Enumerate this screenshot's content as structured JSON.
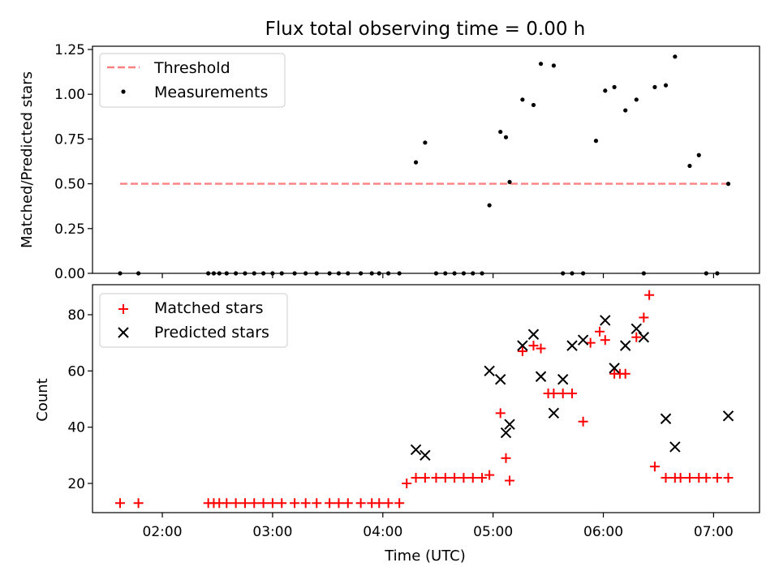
{
  "title": "Flux total observing time = 0.00 h",
  "chart_data": [
    {
      "type": "scatter",
      "ylabel": "Matched/Predicted stars",
      "xlim": [
        "01:22",
        "07:25"
      ],
      "ylim": [
        0,
        1.25
      ],
      "yticks": [
        "0.00",
        "0.25",
        "0.50",
        "0.75",
        "1.00",
        "1.25"
      ],
      "legend_position": "top-left",
      "threshold": {
        "name": "Threshold",
        "color": "#ff8080",
        "y": 0.5,
        "x_start": "01:37",
        "x_end": "07:09"
      },
      "series": [
        {
          "name": "Measurements",
          "color": "#000000",
          "x": [
            "01:37",
            "01:47",
            "02:25",
            "02:28",
            "02:31",
            "02:35",
            "02:40",
            "02:45",
            "02:50",
            "02:55",
            "03:00",
            "03:05",
            "03:12",
            "03:18",
            "03:24",
            "03:31",
            "03:36",
            "03:41",
            "03:48",
            "03:54",
            "03:58",
            "04:03",
            "04:09",
            "04:18",
            "04:23",
            "04:29",
            "04:34",
            "04:39",
            "04:44",
            "04:49",
            "04:54",
            "04:58",
            "05:04",
            "05:07",
            "05:09",
            "05:16",
            "05:22",
            "05:26",
            "05:33",
            "05:38",
            "05:43",
            "05:49",
            "05:56",
            "06:01",
            "06:06",
            "06:12",
            "06:18",
            "06:22",
            "06:28",
            "06:34",
            "06:39",
            "06:47",
            "06:52",
            "06:56",
            "07:02",
            "07:08"
          ],
          "y": [
            0,
            0,
            0,
            0,
            0,
            0,
            0,
            0,
            0,
            0,
            0,
            0,
            0,
            0,
            0,
            0,
            0,
            0,
            0,
            0,
            0,
            0,
            0,
            0.62,
            0.73,
            0,
            0,
            0,
            0,
            0,
            0,
            0.38,
            0.79,
            0.76,
            0.51,
            0.97,
            0.94,
            1.17,
            1.16,
            0,
            0,
            0,
            0.74,
            1.02,
            1.04,
            0.91,
            0.97,
            0,
            1.04,
            1.05,
            1.21,
            0.6,
            0.66,
            0,
            0,
            0.5
          ]
        }
      ]
    },
    {
      "type": "scatter",
      "xlabel": "Time (UTC)",
      "ylabel": "Count",
      "xlim": [
        "01:22",
        "07:25"
      ],
      "ylim": [
        10,
        90
      ],
      "xticks": [
        "02:00",
        "03:00",
        "04:00",
        "05:00",
        "06:00",
        "07:00"
      ],
      "yticks": [
        "20",
        "40",
        "60",
        "80"
      ],
      "legend_position": "top-left",
      "series": [
        {
          "name": "Matched stars",
          "marker": "plus",
          "color": "#ff0000",
          "x": [
            "01:37",
            "01:47",
            "02:25",
            "02:28",
            "02:31",
            "02:35",
            "02:40",
            "02:45",
            "02:50",
            "02:55",
            "03:00",
            "03:05",
            "03:12",
            "03:18",
            "03:24",
            "03:31",
            "03:36",
            "03:41",
            "03:48",
            "03:54",
            "03:58",
            "04:03",
            "04:09",
            "04:13",
            "04:18",
            "04:23",
            "04:29",
            "04:34",
            "04:39",
            "04:44",
            "04:49",
            "04:54",
            "04:58",
            "05:04",
            "05:07",
            "05:09",
            "05:16",
            "05:22",
            "05:26",
            "05:30",
            "05:33",
            "05:38",
            "05:43",
            "05:49",
            "05:53",
            "05:58",
            "06:01",
            "06:06",
            "06:09",
            "06:12",
            "06:18",
            "06:22",
            "06:25",
            "06:28",
            "06:34",
            "06:39",
            "06:42",
            "06:47",
            "06:52",
            "06:56",
            "07:02",
            "07:08"
          ],
          "y": [
            13,
            13,
            13,
            13,
            13,
            13,
            13,
            13,
            13,
            13,
            13,
            13,
            13,
            13,
            13,
            13,
            13,
            13,
            13,
            13,
            13,
            13,
            13,
            20,
            22,
            22,
            22,
            22,
            22,
            22,
            22,
            22,
            23,
            45,
            29,
            21,
            67,
            69,
            68,
            52,
            52,
            52,
            52,
            42,
            70,
            74,
            71,
            59,
            59,
            59,
            72,
            79,
            87,
            26,
            22,
            22,
            22,
            22,
            22,
            22,
            22,
            22
          ]
        },
        {
          "name": "Predicted stars",
          "marker": "x",
          "color": "#000000",
          "x": [
            "04:18",
            "04:23",
            "04:58",
            "05:04",
            "05:07",
            "05:09",
            "05:16",
            "05:22",
            "05:26",
            "05:33",
            "05:38",
            "05:43",
            "05:49",
            "06:01",
            "06:06",
            "06:12",
            "06:18",
            "06:22"
          ],
          "y": [
            32,
            30,
            60,
            57,
            38,
            41,
            69,
            73,
            58,
            45,
            57,
            69,
            71,
            78,
            61,
            69,
            75,
            72
          ]
        }
      ],
      "extra_series_points": {
        "predicted_tail_x": [
          "06:34",
          "06:39",
          "07:08"
        ],
        "predicted_tail_y": [
          43,
          33,
          44
        ]
      }
    }
  ]
}
